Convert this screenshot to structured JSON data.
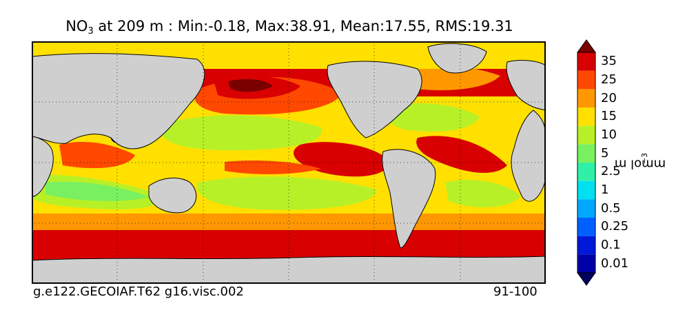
{
  "chart_data": {
    "type": "heatmap",
    "title": {
      "variable": "NO",
      "variable_subscript": "3",
      "rest": " at 209 m : Min:-0.18, Max:38.91, Mean:17.55, RMS:19.31"
    },
    "stats": {
      "min": -0.18,
      "max": 38.91,
      "mean": 17.55,
      "rms": 19.31
    },
    "depth_m": 209,
    "colorbar": {
      "label": "mmol m",
      "label_exponent": "−3",
      "extend": "both",
      "levels": [
        {
          "label": "0.01",
          "color": "#0000a8"
        },
        {
          "label": "0.1",
          "color": "#0018d8"
        },
        {
          "label": "0.25",
          "color": "#0060ff"
        },
        {
          "label": "0.5",
          "color": "#00a8ff"
        },
        {
          "label": "1",
          "color": "#00e0f0"
        },
        {
          "label": "2.5",
          "color": "#30f0a8"
        },
        {
          "label": "5",
          "color": "#78f060"
        },
        {
          "label": "10",
          "color": "#b8f028"
        },
        {
          "label": "15",
          "color": "#ffe000"
        },
        {
          "label": "20",
          "color": "#ff9800"
        },
        {
          "label": "25",
          "color": "#ff4800"
        },
        {
          "label": "35",
          "color": "#d80000"
        }
      ],
      "under_color": "#000060",
      "over_color": "#7a0000"
    },
    "map": {
      "projection": "global lat-lon",
      "grid": "on",
      "land_color": "#cfcfcf",
      "missing_color": "#ffffff"
    },
    "case_name": "g.e122.GECOIAF.T62 g16.visc.002",
    "years": "91-100"
  }
}
